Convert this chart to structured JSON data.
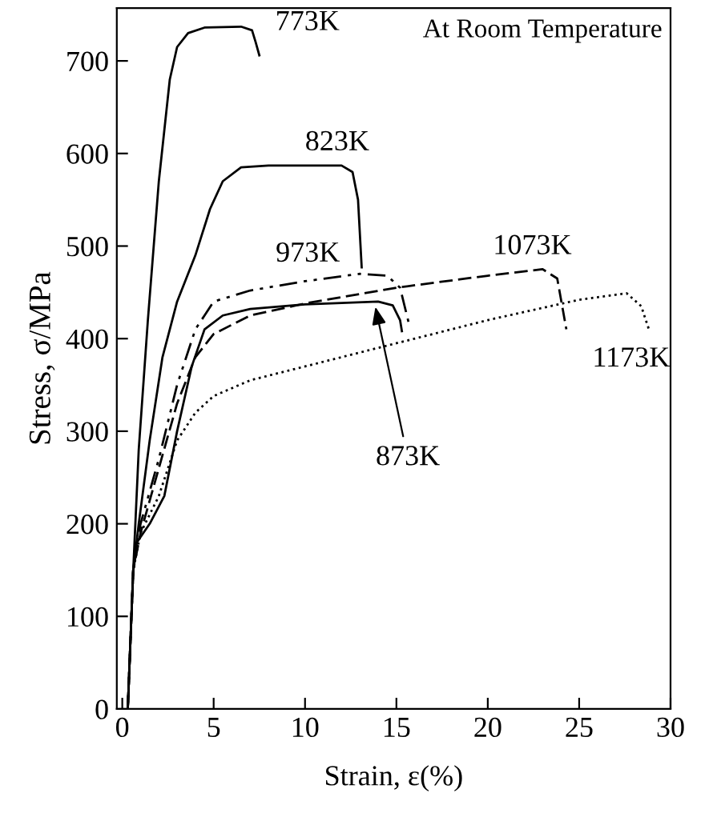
{
  "chart_data": {
    "type": "line",
    "xlabel": "Strain, ε(%)",
    "ylabel": "Stress, σ/MPa",
    "xlim": [
      -0.3,
      30
    ],
    "xticks": [
      0,
      5,
      10,
      15,
      20,
      25,
      30
    ],
    "ylim": [
      0,
      757
    ],
    "yticks": [
      0,
      100,
      200,
      300,
      400,
      500,
      600,
      700
    ],
    "grid": false,
    "legend": false,
    "marker": "none",
    "series": [
      {
        "color": "#000000",
        "line_style": "solid",
        "x": [
          0.3,
          0.6,
          0.9,
          1.4,
          2.0,
          2.6,
          3.0,
          3.6,
          4.5,
          6.5,
          7.1,
          7.3,
          7.5
        ],
        "values": [
          0,
          150,
          280,
          420,
          570,
          680,
          715,
          730,
          736,
          737,
          733,
          720,
          706
        ]
      },
      {
        "color": "#000000",
        "line_style": "solid",
        "x": [
          0.3,
          0.6,
          0.9,
          1.5,
          2.2,
          3.0,
          4.0,
          4.8,
          5.5,
          6.5,
          8,
          12,
          12.6,
          12.9,
          13.1
        ],
        "values": [
          0,
          150,
          200,
          290,
          380,
          440,
          490,
          540,
          570,
          585,
          587,
          587,
          580,
          550,
          477
        ]
      },
      {
        "color": "#000000",
        "line_style": "solid",
        "x": [
          0.3,
          0.6,
          0.8,
          1.5,
          2.3,
          3.0,
          3.8,
          4.5,
          5.5,
          7,
          10,
          14,
          14.8,
          15.2,
          15.3
        ],
        "values": [
          0,
          150,
          180,
          200,
          230,
          300,
          370,
          410,
          425,
          432,
          437,
          440,
          436,
          420,
          408
        ]
      },
      {
        "color": "#000000",
        "line_style": "dashdot",
        "x": [
          0.3,
          0.6,
          1,
          2,
          3,
          4,
          5,
          7,
          10,
          13,
          14.5,
          15.2,
          15.7
        ],
        "values": [
          0,
          150,
          200,
          270,
          350,
          410,
          440,
          452,
          462,
          470,
          468,
          455,
          415
        ]
      },
      {
        "color": "#000000",
        "line_style": "dashed",
        "x": [
          0.3,
          0.6,
          1,
          2,
          3,
          4,
          5,
          7,
          10,
          15,
          20,
          23,
          23.8,
          24.3
        ],
        "values": [
          0,
          150,
          190,
          260,
          330,
          380,
          405,
          425,
          438,
          455,
          468,
          475,
          465,
          410
        ]
      },
      {
        "color": "#000000",
        "line_style": "dotted",
        "x": [
          0.3,
          0.6,
          1,
          2,
          3,
          4,
          5,
          7,
          10,
          15,
          20,
          25,
          27.6,
          28.4,
          28.8
        ],
        "values": [
          0,
          150,
          190,
          230,
          290,
          320,
          338,
          355,
          370,
          395,
          420,
          442,
          449,
          435,
          411
        ]
      }
    ],
    "annotations": [
      "At Room Temperature",
      {
        "text": "773K",
        "x": 7.4,
        "y": 736
      },
      {
        "text": "823K",
        "x": 10,
        "y": 587
      },
      {
        "text": "973K",
        "x": 9,
        "y": 462
      },
      {
        "text": "1073K",
        "x": 21.5,
        "y": 470
      },
      {
        "text": "1173K",
        "x": 28.4,
        "y": 435
      },
      {
        "text": "873K",
        "x": 13.8,
        "y": 439
      }
    ]
  }
}
